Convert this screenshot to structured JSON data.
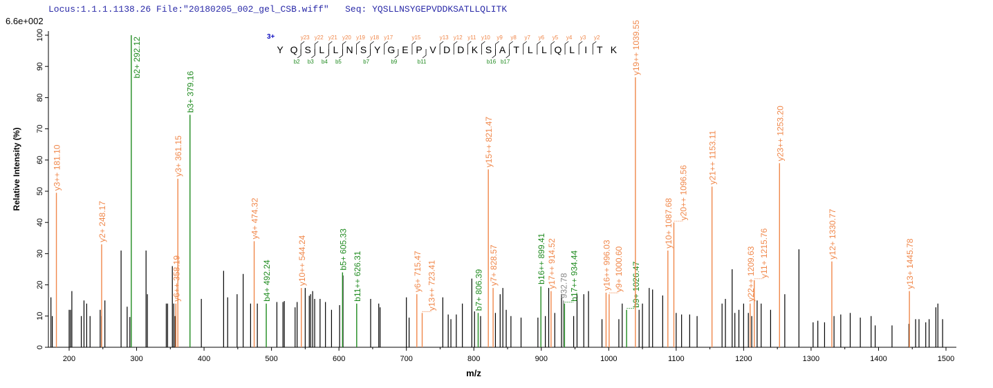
{
  "header": {
    "locus": "Locus:1.1.1.1138.26",
    "file": "File:\"20180205_002_gel_CSB.wiff\"",
    "seq_label": "Seq:",
    "seq_value": "YQSLLNSYGEPVDDKSATLLQLITK"
  },
  "colors": {
    "y_ion": "#F0874A",
    "b_ion": "#1E8A1E",
    "unassigned": "#000000",
    "other": "#888888",
    "charge": "#1010C0",
    "axis": "#000000"
  },
  "annotation": {
    "charge": "3+",
    "residues": [
      "Y",
      "Q",
      "S",
      "L",
      "L",
      "N",
      "S",
      "Y",
      "G",
      "E",
      "P",
      "V",
      "D",
      "D",
      "K",
      "S",
      "A",
      "T",
      "L",
      "L",
      "Q",
      "L",
      "I",
      "T",
      "K"
    ],
    "y_sites": [
      2,
      3,
      4,
      5,
      6,
      7,
      8,
      10,
      12,
      13,
      14,
      15,
      16,
      17,
      18,
      19,
      20,
      21,
      22,
      23
    ],
    "y_labels": [
      "y23",
      "y22",
      "y21",
      "y20",
      "y19",
      "y18",
      "y17",
      "y15",
      "y13",
      "y12",
      "y11",
      "y10",
      "y9",
      "y8",
      "y7",
      "y6",
      "y5",
      "y4",
      "y3",
      "y2"
    ],
    "b_sites": [
      2,
      3,
      4,
      5,
      7,
      9,
      11,
      16,
      17
    ],
    "b_labels": [
      "b2",
      "b3",
      "b4",
      "b5",
      "b7",
      "b9",
      "b11",
      "b16",
      "b17"
    ]
  },
  "chart_data": {
    "type": "bar",
    "title": "",
    "scale_label": "6.6e+002",
    "xlabel": "m/z",
    "ylabel": "Relative   Intensity (%)",
    "xlim": [
      169,
      1515
    ],
    "ylim": [
      0,
      100
    ],
    "xticks": [
      200,
      300,
      400,
      500,
      600,
      700,
      800,
      900,
      1000,
      1100,
      1200,
      1300,
      1400,
      1500
    ],
    "yticks": [
      0,
      10,
      20,
      30,
      40,
      50,
      60,
      70,
      80,
      90,
      100
    ],
    "annotated_peaks": [
      {
        "mz": 181.1,
        "intensity": 49.5,
        "type": "y",
        "label": "y3++ 181.10"
      },
      {
        "mz": 248.17,
        "intensity": 33,
        "type": "y",
        "label": "y2+ 248.17"
      },
      {
        "mz": 292.12,
        "intensity": 100,
        "type": "b",
        "label": "b2+ 292.12"
      },
      {
        "mz": 358.19,
        "intensity": 14,
        "type": "y",
        "label": "y6++ 358.19"
      },
      {
        "mz": 361.15,
        "intensity": 54,
        "type": "y",
        "label": "y3+ 361.15"
      },
      {
        "mz": 379.16,
        "intensity": 74.5,
        "type": "b",
        "label": "b3+ 379.16"
      },
      {
        "mz": 474.32,
        "intensity": 34,
        "type": "y",
        "label": "y4+ 474.32"
      },
      {
        "mz": 492.24,
        "intensity": 14,
        "type": "b",
        "label": "b4+ 492.24"
      },
      {
        "mz": 544.24,
        "intensity": 19,
        "type": "y",
        "label": "y10++ 544.24"
      },
      {
        "mz": 605.33,
        "intensity": 24,
        "type": "b",
        "label": "b5+ 605.33"
      },
      {
        "mz": 626.31,
        "intensity": 14,
        "type": "b",
        "label": "b11++ 626.31"
      },
      {
        "mz": 715.47,
        "intensity": 17,
        "type": "y",
        "label": "y6+ 715.47"
      },
      {
        "mz": 723.41,
        "intensity": 11,
        "type": "y",
        "label": "y13++ 723.41"
      },
      {
        "mz": 806.39,
        "intensity": 11,
        "type": "b",
        "label": "b7+ 806.39"
      },
      {
        "mz": 821.47,
        "intensity": 57,
        "type": "y",
        "label": "y15++ 821.47"
      },
      {
        "mz": 828.57,
        "intensity": 19,
        "type": "y",
        "label": "y7+ 828.57"
      },
      {
        "mz": 899.41,
        "intensity": 19.5,
        "type": "b",
        "label": "b16++ 899.41"
      },
      {
        "mz": 914.52,
        "intensity": 18,
        "type": "y",
        "label": "y17++ 914.52"
      },
      {
        "mz": 932.78,
        "intensity": 15,
        "type": "other",
        "label": "932.78"
      },
      {
        "mz": 934.44,
        "intensity": 14,
        "type": "b",
        "label": "b17++ 934.44"
      },
      {
        "mz": 996.03,
        "intensity": 17.5,
        "type": "y",
        "label": "y16++ 996.03"
      },
      {
        "mz": 1000.6,
        "intensity": 17,
        "type": "y",
        "label": "y9+ 1000.60"
      },
      {
        "mz": 1026.47,
        "intensity": 12,
        "type": "b",
        "label": "b9+ 1026.47"
      },
      {
        "mz": 1039.55,
        "intensity": 86.5,
        "type": "y",
        "label": "y19++ 1039.55"
      },
      {
        "mz": 1087.68,
        "intensity": 31,
        "type": "y",
        "label": "y10+ 1087.68"
      },
      {
        "mz": 1096.56,
        "intensity": 40,
        "type": "y",
        "label": "y20++ 1096.56"
      },
      {
        "mz": 1153.11,
        "intensity": 51.5,
        "type": "y",
        "label": "y21++ 1153.11"
      },
      {
        "mz": 1209.63,
        "intensity": 14,
        "type": "y",
        "label": "y22++ 1209.63"
      },
      {
        "mz": 1215.76,
        "intensity": 21.5,
        "type": "y",
        "label": "y11+ 1215.76"
      },
      {
        "mz": 1253.2,
        "intensity": 59,
        "type": "y",
        "label": "y23++ 1253.20"
      },
      {
        "mz": 1330.77,
        "intensity": 27.5,
        "type": "y",
        "label": "y12+ 1330.77"
      },
      {
        "mz": 1445.78,
        "intensity": 18,
        "type": "y",
        "label": "y13+ 1445.78"
      }
    ],
    "peaks": [
      [
        173,
        16
      ],
      [
        175,
        10
      ],
      [
        200,
        12
      ],
      [
        202,
        12
      ],
      [
        204,
        18
      ],
      [
        218,
        10
      ],
      [
        222,
        15
      ],
      [
        226,
        14
      ],
      [
        231,
        10
      ],
      [
        246,
        12
      ],
      [
        248,
        10
      ],
      [
        253,
        15
      ],
      [
        277,
        31
      ],
      [
        286,
        13
      ],
      [
        290,
        9.7
      ],
      [
        314,
        31
      ],
      [
        316,
        17
      ],
      [
        344,
        14
      ],
      [
        346,
        14
      ],
      [
        353,
        26
      ],
      [
        355,
        14
      ],
      [
        357,
        10
      ],
      [
        396,
        15.5
      ],
      [
        429,
        24.5
      ],
      [
        435,
        16
      ],
      [
        449,
        17
      ],
      [
        458,
        23.5
      ],
      [
        469,
        14
      ],
      [
        479,
        14
      ],
      [
        508,
        14.5
      ],
      [
        517,
        14.5
      ],
      [
        519,
        14.8
      ],
      [
        535,
        12.8
      ],
      [
        538,
        14.5
      ],
      [
        550,
        19
      ],
      [
        556,
        16.5
      ],
      [
        558,
        17
      ],
      [
        561,
        18
      ],
      [
        564,
        15.5
      ],
      [
        572,
        15.5
      ],
      [
        580,
        14.5
      ],
      [
        589,
        12
      ],
      [
        601,
        13.5
      ],
      [
        606,
        23
      ],
      [
        647,
        15.5
      ],
      [
        659,
        14
      ],
      [
        661,
        12.8
      ],
      [
        700,
        16
      ],
      [
        704,
        9.5
      ],
      [
        754,
        16
      ],
      [
        762,
        10.5
      ],
      [
        766,
        9
      ],
      [
        774,
        10.5
      ],
      [
        783,
        14
      ],
      [
        797,
        22
      ],
      [
        801,
        11.5
      ],
      [
        810,
        10
      ],
      [
        832,
        11
      ],
      [
        839,
        17
      ],
      [
        843,
        19
      ],
      [
        848,
        12
      ],
      [
        855,
        10
      ],
      [
        870,
        9.5
      ],
      [
        895,
        9.5
      ],
      [
        906,
        10
      ],
      [
        911,
        19
      ],
      [
        920,
        11
      ],
      [
        930,
        17
      ],
      [
        948,
        10
      ],
      [
        953,
        17
      ],
      [
        963,
        17
      ],
      [
        970,
        18
      ],
      [
        990,
        9
      ],
      [
        1015,
        9
      ],
      [
        1020,
        14
      ],
      [
        1045,
        12
      ],
      [
        1050,
        14
      ],
      [
        1060,
        19
      ],
      [
        1065,
        18.5
      ],
      [
        1080,
        16.6
      ],
      [
        1100,
        11
      ],
      [
        1108,
        10.5
      ],
      [
        1120,
        10.5
      ],
      [
        1131,
        10
      ],
      [
        1168,
        14
      ],
      [
        1173,
        15.5
      ],
      [
        1183,
        25
      ],
      [
        1187,
        11
      ],
      [
        1193,
        12
      ],
      [
        1200,
        14
      ],
      [
        1207,
        11
      ],
      [
        1212,
        10
      ],
      [
        1220,
        15
      ],
      [
        1226,
        14
      ],
      [
        1240,
        12
      ],
      [
        1261,
        17
      ],
      [
        1282,
        31.4
      ],
      [
        1303,
        8
      ],
      [
        1310,
        8.5
      ],
      [
        1320,
        8
      ],
      [
        1334,
        10
      ],
      [
        1344,
        10.5
      ],
      [
        1358,
        11
      ],
      [
        1373,
        9.5
      ],
      [
        1389,
        10
      ],
      [
        1395,
        7
      ],
      [
        1420,
        7
      ],
      [
        1445,
        7.5
      ],
      [
        1455,
        9
      ],
      [
        1460,
        9
      ],
      [
        1470,
        8
      ],
      [
        1475,
        9
      ],
      [
        1485,
        12.8
      ],
      [
        1488,
        14
      ],
      [
        1495,
        9
      ]
    ]
  }
}
